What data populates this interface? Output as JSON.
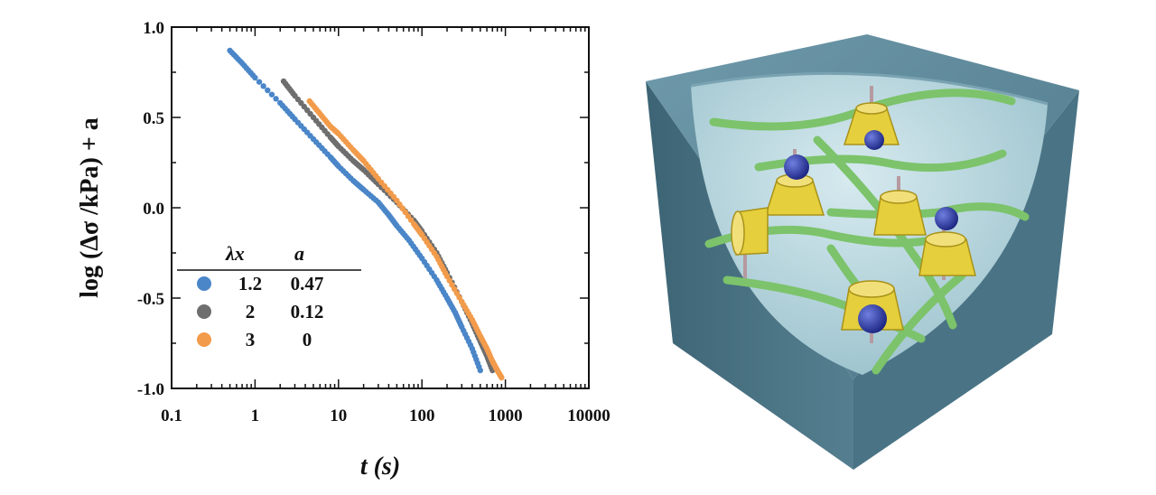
{
  "chart_data": {
    "type": "scatter",
    "title": "",
    "xscale": "log",
    "xlim": [
      0.1,
      10000
    ],
    "ylim": [
      -1.0,
      1.0
    ],
    "xticks": [
      0.1,
      1,
      10,
      100,
      1000,
      10000
    ],
    "xtick_labels": [
      "0.1",
      "1",
      "10",
      "100",
      "1000",
      "10000"
    ],
    "yticks": [
      -1.0,
      -0.5,
      0.0,
      0.5,
      1.0
    ],
    "ytick_labels": [
      "-1.0",
      "-0.5",
      "0.0",
      "0.5",
      "1.0"
    ],
    "xlabel": "t (s)",
    "ylabel": "log (Δσ /kPa) + a",
    "grid": false,
    "legend": {
      "placement": "lower-left",
      "header_lambda": "λx",
      "header_a": "a",
      "entries": [
        {
          "lambda": "1.2",
          "a": "0.47",
          "color": "#4a86c8"
        },
        {
          "lambda": "2",
          "a": "0.12",
          "color": "#6e6e6e"
        },
        {
          "lambda": "3",
          "a": "0",
          "color": "#f29b4b"
        }
      ]
    },
    "series": [
      {
        "name": "λx = 1.2",
        "color": "#4a86c8",
        "x": [
          0.5,
          0.7,
          1,
          2,
          3,
          5,
          8,
          10,
          15,
          20,
          30,
          40,
          50,
          70,
          100,
          150,
          200,
          250,
          300,
          400,
          500
        ],
        "y": [
          0.87,
          0.8,
          0.72,
          0.58,
          0.49,
          0.38,
          0.28,
          0.23,
          0.15,
          0.1,
          0.03,
          -0.04,
          -0.1,
          -0.18,
          -0.28,
          -0.4,
          -0.5,
          -0.58,
          -0.66,
          -0.78,
          -0.9
        ]
      },
      {
        "name": "λx = 2",
        "color": "#6e6e6e",
        "x": [
          2.2,
          3,
          5,
          8,
          10,
          15,
          20,
          30,
          50,
          80,
          100,
          150,
          200,
          300,
          400,
          500,
          600,
          700
        ],
        "y": [
          0.7,
          0.62,
          0.5,
          0.39,
          0.34,
          0.26,
          0.21,
          0.13,
          0.03,
          -0.07,
          -0.13,
          -0.25,
          -0.36,
          -0.52,
          -0.64,
          -0.74,
          -0.82,
          -0.9
        ]
      },
      {
        "name": "λx = 3",
        "color": "#f29b4b",
        "x": [
          4.5,
          6,
          8,
          10,
          15,
          20,
          30,
          50,
          80,
          100,
          150,
          200,
          300,
          400,
          500,
          600,
          700,
          800,
          900
        ],
        "y": [
          0.59,
          0.52,
          0.45,
          0.41,
          0.32,
          0.26,
          0.16,
          0.04,
          -0.09,
          -0.15,
          -0.27,
          -0.38,
          -0.52,
          -0.62,
          -0.71,
          -0.78,
          -0.85,
          -0.9,
          -0.94
        ]
      }
    ]
  },
  "illustration": {
    "colors": {
      "cube": "#5b8799",
      "cube_inner": "#b9d7df",
      "strand": "#7cc36b",
      "ring": "#e5cf3c",
      "bead": "#2c3aa0"
    }
  }
}
